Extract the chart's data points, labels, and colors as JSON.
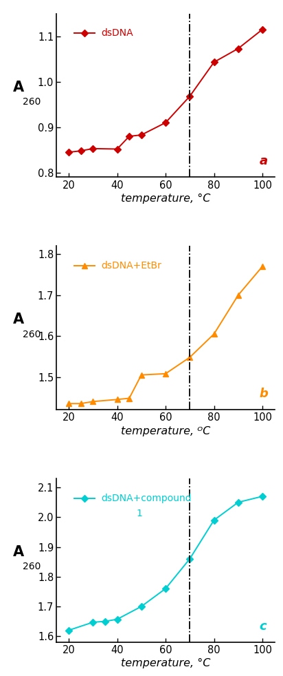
{
  "panel_a": {
    "x": [
      20,
      25,
      30,
      40,
      45,
      50,
      60,
      70,
      80,
      90,
      100
    ],
    "y": [
      0.845,
      0.848,
      0.853,
      0.852,
      0.88,
      0.883,
      0.91,
      0.968,
      1.043,
      1.073,
      1.115
    ],
    "color": "#cc0000",
    "marker": "D",
    "label": "dsDNA",
    "vline": 70,
    "panel_label": "a",
    "ylim": [
      0.79,
      1.15
    ],
    "yticks": [
      0.8,
      0.9,
      1.0,
      1.1
    ],
    "xlabel": "temperature, °C"
  },
  "panel_b": {
    "x": [
      20,
      25,
      30,
      40,
      45,
      50,
      60,
      70,
      80,
      90,
      100
    ],
    "y": [
      1.435,
      1.435,
      1.44,
      1.445,
      1.448,
      1.505,
      1.508,
      1.548,
      1.605,
      1.7,
      1.77
    ],
    "color": "#FF8C00",
    "marker": "^",
    "label": "dsDNA+EtBr",
    "vline": 70,
    "panel_label": "b",
    "ylim": [
      1.42,
      1.82
    ],
    "yticks": [
      1.5,
      1.6,
      1.7,
      1.8
    ],
    "xlabel": "temperature, ᴼC"
  },
  "panel_c": {
    "x": [
      20,
      30,
      35,
      40,
      50,
      60,
      70,
      80,
      90,
      100
    ],
    "y": [
      1.62,
      1.647,
      1.65,
      1.657,
      1.7,
      1.76,
      1.86,
      1.99,
      2.05,
      2.07
    ],
    "color": "#00CED1",
    "marker": "D",
    "label_line1": "dsDNA+compound",
    "label_line2": "1",
    "vline": 70,
    "panel_label": "c",
    "ylim": [
      1.58,
      2.13
    ],
    "yticks": [
      1.6,
      1.7,
      1.8,
      1.9,
      2.0,
      2.1
    ],
    "xlabel": "temperature, °C"
  },
  "xlim": [
    15,
    105
  ],
  "xticks": [
    20,
    40,
    60,
    80,
    100
  ],
  "ylabel_main": "A",
  "ylabel_sub": "260",
  "bg_color": "#ffffff"
}
